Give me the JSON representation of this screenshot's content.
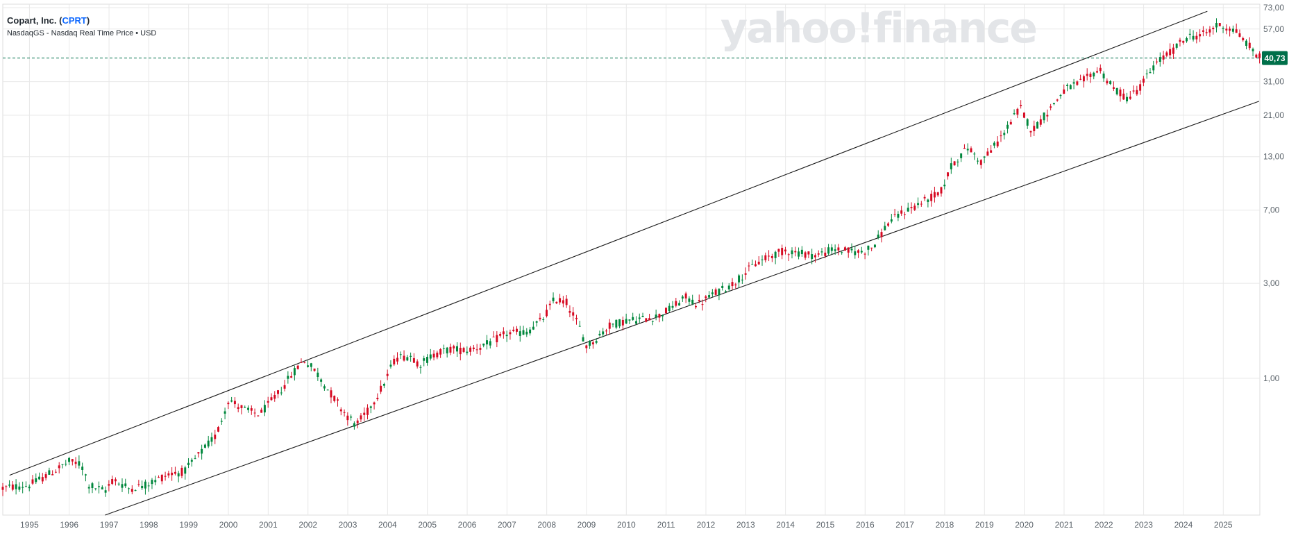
{
  "header": {
    "company": "Copart, Inc.",
    "ticker": "CPRT",
    "exchange_line": "NasdaqGS - Nasdaq Real Time Price • USD",
    "open_paren": "(",
    "close_paren": ")"
  },
  "watermark": "yahoo!finance",
  "colors": {
    "up": "#00873c",
    "down": "#d60a22",
    "grid": "#e8e8e8",
    "badge": "#00704a"
  },
  "chart_data": {
    "type": "candlestick",
    "scale": "log",
    "interval": "monthly",
    "x_start": 1994.33,
    "x_end": 2025.92,
    "ylim": [
      0.205,
      76
    ],
    "y_ticks": [
      "73,00",
      "57,00",
      "31,00",
      "21,00",
      "13,00",
      "7,00",
      "3,00",
      "1,00"
    ],
    "y_tick_values": [
      73,
      57,
      31,
      21,
      13,
      7,
      3,
      1
    ],
    "x_ticks": [
      "1995",
      "1996",
      "1997",
      "1998",
      "1999",
      "2000",
      "2001",
      "2002",
      "2003",
      "2004",
      "2005",
      "2006",
      "2007",
      "2008",
      "2009",
      "2010",
      "2011",
      "2012",
      "2013",
      "2014",
      "2015",
      "2016",
      "2017",
      "2018",
      "2019",
      "2020",
      "2021",
      "2022",
      "2023",
      "2024",
      "2025"
    ],
    "current_price": 40.73,
    "current_price_label": "40,73",
    "price_anchors": [
      [
        1994.33,
        0.28
      ],
      [
        1995.0,
        0.29
      ],
      [
        1995.5,
        0.33
      ],
      [
        1996.0,
        0.38
      ],
      [
        1996.3,
        0.37
      ],
      [
        1996.5,
        0.29
      ],
      [
        1996.9,
        0.27
      ],
      [
        1997.1,
        0.31
      ],
      [
        1997.5,
        0.28
      ],
      [
        1997.9,
        0.29
      ],
      [
        1998.5,
        0.33
      ],
      [
        1998.9,
        0.34
      ],
      [
        1999.3,
        0.42
      ],
      [
        1999.7,
        0.52
      ],
      [
        2000.0,
        0.78
      ],
      [
        2000.5,
        0.68
      ],
      [
        2000.8,
        0.66
      ],
      [
        2001.3,
        0.86
      ],
      [
        2001.6,
        1.05
      ],
      [
        2001.9,
        1.24
      ],
      [
        2002.2,
        1.08
      ],
      [
        2002.5,
        0.88
      ],
      [
        2002.9,
        0.68
      ],
      [
        2003.2,
        0.58
      ],
      [
        2003.5,
        0.68
      ],
      [
        2003.9,
        0.93
      ],
      [
        2004.2,
        1.27
      ],
      [
        2004.6,
        1.3
      ],
      [
        2004.8,
        1.17
      ],
      [
        2005.2,
        1.33
      ],
      [
        2005.6,
        1.4
      ],
      [
        2006.0,
        1.38
      ],
      [
        2006.5,
        1.48
      ],
      [
        2007.0,
        1.68
      ],
      [
        2007.5,
        1.7
      ],
      [
        2007.9,
        1.98
      ],
      [
        2008.2,
        2.5
      ],
      [
        2008.5,
        2.4
      ],
      [
        2008.8,
        1.85
      ],
      [
        2009.0,
        1.45
      ],
      [
        2009.2,
        1.55
      ],
      [
        2009.6,
        1.85
      ],
      [
        2010.0,
        1.95
      ],
      [
        2010.4,
        1.98
      ],
      [
        2010.8,
        2.05
      ],
      [
        2011.2,
        2.3
      ],
      [
        2011.5,
        2.55
      ],
      [
        2011.8,
        2.35
      ],
      [
        2012.2,
        2.65
      ],
      [
        2012.7,
        3.0
      ],
      [
        2013.2,
        3.7
      ],
      [
        2013.6,
        4.1
      ],
      [
        2014.0,
        4.4
      ],
      [
        2014.4,
        4.25
      ],
      [
        2014.8,
        4.15
      ],
      [
        2015.2,
        4.45
      ],
      [
        2015.6,
        4.35
      ],
      [
        2015.9,
        4.3
      ],
      [
        2016.2,
        4.6
      ],
      [
        2016.6,
        6.1
      ],
      [
        2017.0,
        6.9
      ],
      [
        2017.5,
        7.8
      ],
      [
        2017.9,
        8.6
      ],
      [
        2018.2,
        12.0
      ],
      [
        2018.6,
        14.5
      ],
      [
        2018.9,
        12.2
      ],
      [
        2019.3,
        15.0
      ],
      [
        2019.9,
        23.0
      ],
      [
        2020.2,
        17.5
      ],
      [
        2020.6,
        22.0
      ],
      [
        2021.0,
        28.0
      ],
      [
        2021.4,
        30.5
      ],
      [
        2021.9,
        36.0
      ],
      [
        2022.2,
        29.0
      ],
      [
        2022.6,
        25.5
      ],
      [
        2022.9,
        29.0
      ],
      [
        2023.3,
        38.0
      ],
      [
        2023.7,
        44.0
      ],
      [
        2024.1,
        52.0
      ],
      [
        2024.5,
        53.5
      ],
      [
        2024.9,
        60.0
      ],
      [
        2025.3,
        56.0
      ],
      [
        2025.6,
        48.0
      ],
      [
        2025.92,
        40.73
      ]
    ],
    "trend_lines": [
      {
        "from": [
          1994.5,
          0.325
        ],
        "to": [
          2024.6,
          70.0
        ]
      },
      {
        "from": [
          1996.9,
          0.205
        ],
        "to": [
          2025.9,
          24.7
        ]
      }
    ]
  }
}
